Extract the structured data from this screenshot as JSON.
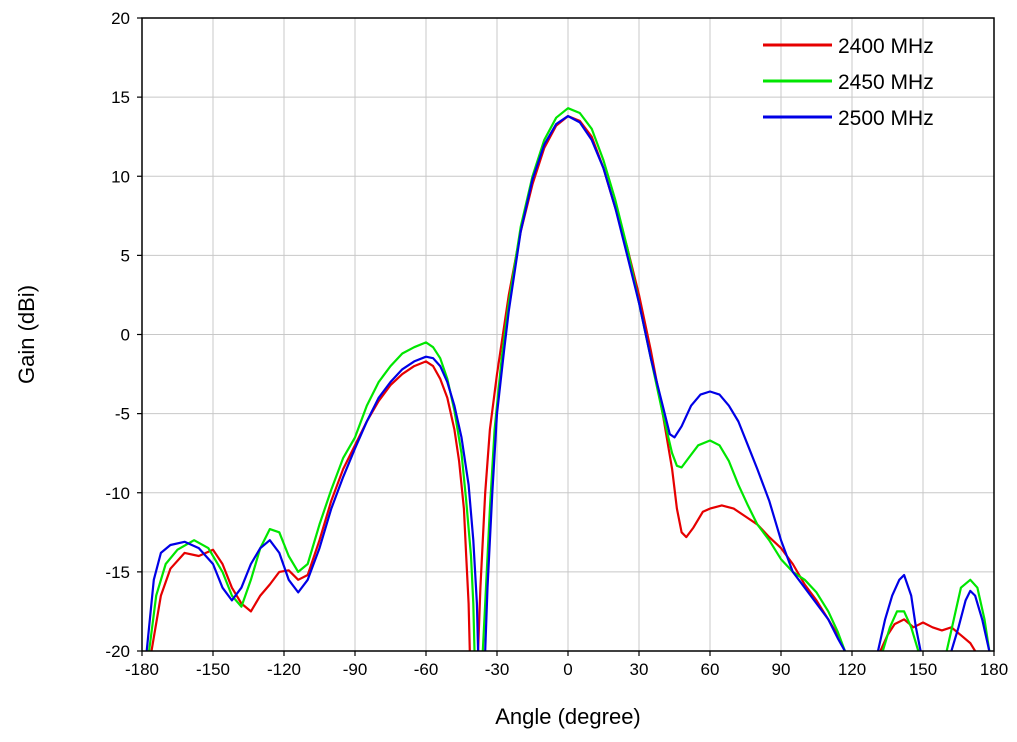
{
  "chart_data": {
    "type": "line",
    "title": "",
    "xlabel": "Angle (degree)",
    "ylabel": "Gain (dBi)",
    "xlim": [
      -180,
      180
    ],
    "ylim": [
      -20,
      20
    ],
    "xticks": [
      -180,
      -150,
      -120,
      -90,
      -60,
      -30,
      0,
      30,
      60,
      90,
      120,
      150,
      180
    ],
    "xtick_labels": [
      "-180",
      "-150",
      "-120",
      "-90",
      "-60",
      "-30",
      "0",
      "30",
      "60",
      "90",
      "120",
      "150",
      "180"
    ],
    "yticks": [
      -20,
      -15,
      -10,
      -5,
      0,
      5,
      10,
      15,
      20
    ],
    "ytick_labels": [
      "-20",
      "-15",
      "-10",
      "-5",
      "0",
      "5",
      "10",
      "15",
      "20"
    ],
    "grid": true,
    "legend_position": "top-right",
    "series": [
      {
        "name": "2400 MHz",
        "color": "#e60000",
        "segments": [
          [
            [
              -176,
              -20
            ],
            [
              -172,
              -16.5
            ],
            [
              -168,
              -14.8
            ],
            [
              -162,
              -13.8
            ],
            [
              -156,
              -14
            ],
            [
              -150,
              -13.6
            ],
            [
              -146,
              -14.5
            ],
            [
              -142,
              -16
            ],
            [
              -138,
              -17
            ],
            [
              -134,
              -17.5
            ],
            [
              -130,
              -16.5
            ],
            [
              -126,
              -15.8
            ],
            [
              -122,
              -15
            ],
            [
              -118,
              -14.9
            ],
            [
              -114,
              -15.5
            ],
            [
              -110,
              -15.2
            ],
            [
              -105,
              -13
            ],
            [
              -100,
              -10.5
            ],
            [
              -95,
              -8.5
            ],
            [
              -90,
              -7
            ],
            [
              -85,
              -5.5
            ],
            [
              -80,
              -4.2
            ],
            [
              -75,
              -3.2
            ],
            [
              -70,
              -2.5
            ],
            [
              -65,
              -2
            ],
            [
              -60,
              -1.7
            ],
            [
              -57,
              -2
            ],
            [
              -54,
              -2.8
            ],
            [
              -51,
              -4
            ],
            [
              -48,
              -6
            ],
            [
              -46,
              -8
            ],
            [
              -44,
              -11
            ],
            [
              -43,
              -14
            ],
            [
              -42,
              -17
            ],
            [
              -41.5,
              -20
            ]
          ],
          [
            [
              -38,
              -20
            ],
            [
              -37,
              -16
            ],
            [
              -35,
              -10
            ],
            [
              -33,
              -6
            ],
            [
              -30,
              -2.5
            ],
            [
              -25,
              2.5
            ],
            [
              -20,
              6.5
            ],
            [
              -15,
              9.5
            ],
            [
              -10,
              11.8
            ],
            [
              -5,
              13.2
            ],
            [
              0,
              13.8
            ],
            [
              5,
              13.5
            ],
            [
              10,
              12.5
            ],
            [
              15,
              10.5
            ],
            [
              20,
              8
            ],
            [
              25,
              5.5
            ],
            [
              30,
              2.5
            ],
            [
              35,
              -1
            ],
            [
              40,
              -5
            ],
            [
              44,
              -8.5
            ],
            [
              46,
              -11
            ],
            [
              48,
              -12.5
            ],
            [
              50,
              -12.8
            ],
            [
              53,
              -12.2
            ],
            [
              57,
              -11.2
            ],
            [
              60,
              -11
            ],
            [
              65,
              -10.8
            ],
            [
              70,
              -11
            ],
            [
              75,
              -11.5
            ],
            [
              80,
              -12
            ],
            [
              85,
              -12.8
            ],
            [
              90,
              -13.5
            ],
            [
              95,
              -14.5
            ],
            [
              100,
              -15.8
            ],
            [
              105,
              -16.8
            ],
            [
              110,
              -18
            ],
            [
              114,
              -19
            ],
            [
              117,
              -20
            ]
          ],
          [
            [
              132,
              -20
            ],
            [
              135,
              -19
            ],
            [
              138,
              -18.3
            ],
            [
              142,
              -18
            ],
            [
              146,
              -18.5
            ],
            [
              150,
              -18.2
            ],
            [
              154,
              -18.5
            ],
            [
              158,
              -18.7
            ],
            [
              162,
              -18.5
            ],
            [
              166,
              -19
            ],
            [
              170,
              -19.5
            ],
            [
              172,
              -20
            ]
          ]
        ]
      },
      {
        "name": "2450 MHz",
        "color": "#00e600",
        "segments": [
          [
            [
              -177,
              -20
            ],
            [
              -174,
              -16.5
            ],
            [
              -170,
              -14.5
            ],
            [
              -165,
              -13.6
            ],
            [
              -158,
              -13
            ],
            [
              -152,
              -13.5
            ],
            [
              -146,
              -15
            ],
            [
              -142,
              -16.5
            ],
            [
              -138,
              -17.2
            ],
            [
              -134,
              -15.5
            ],
            [
              -130,
              -13.5
            ],
            [
              -126,
              -12.3
            ],
            [
              -122,
              -12.5
            ],
            [
              -118,
              -14
            ],
            [
              -114,
              -15
            ],
            [
              -110,
              -14.5
            ],
            [
              -105,
              -12
            ],
            [
              -100,
              -9.8
            ],
            [
              -95,
              -7.8
            ],
            [
              -90,
              -6.5
            ],
            [
              -85,
              -4.5
            ],
            [
              -80,
              -3
            ],
            [
              -75,
              -2
            ],
            [
              -70,
              -1.2
            ],
            [
              -65,
              -0.8
            ],
            [
              -60,
              -0.5
            ],
            [
              -57,
              -0.8
            ],
            [
              -54,
              -1.5
            ],
            [
              -51,
              -2.8
            ],
            [
              -48,
              -4.8
            ],
            [
              -45,
              -7.5
            ],
            [
              -43,
              -10.5
            ],
            [
              -41,
              -14
            ],
            [
              -40,
              -17
            ],
            [
              -39.5,
              -20
            ]
          ],
          [
            [
              -36,
              -20
            ],
            [
              -35,
              -17
            ],
            [
              -33,
              -11
            ],
            [
              -31,
              -6
            ],
            [
              -28,
              -1.5
            ],
            [
              -25,
              2
            ],
            [
              -20,
              6.8
            ],
            [
              -15,
              10
            ],
            [
              -10,
              12.3
            ],
            [
              -5,
              13.7
            ],
            [
              0,
              14.3
            ],
            [
              5,
              14
            ],
            [
              10,
              13
            ],
            [
              15,
              11
            ],
            [
              20,
              8.5
            ],
            [
              25,
              5.5
            ],
            [
              30,
              2
            ],
            [
              35,
              -1.5
            ],
            [
              40,
              -5
            ],
            [
              44,
              -7.5
            ],
            [
              46,
              -8.3
            ],
            [
              48,
              -8.4
            ],
            [
              51,
              -7.8
            ],
            [
              55,
              -7
            ],
            [
              60,
              -6.7
            ],
            [
              64,
              -7
            ],
            [
              68,
              -8
            ],
            [
              72,
              -9.5
            ],
            [
              76,
              -10.8
            ],
            [
              80,
              -12
            ],
            [
              85,
              -13
            ],
            [
              90,
              -14.2
            ],
            [
              95,
              -15
            ],
            [
              100,
              -15.5
            ],
            [
              105,
              -16.3
            ],
            [
              110,
              -17.5
            ],
            [
              114,
              -18.8
            ],
            [
              117,
              -20
            ]
          ],
          [
            [
              133,
              -20
            ],
            [
              136,
              -18.5
            ],
            [
              139,
              -17.5
            ],
            [
              142,
              -17.5
            ],
            [
              145,
              -18.5
            ],
            [
              148,
              -20
            ]
          ],
          [
            [
              160,
              -20
            ],
            [
              163,
              -18
            ],
            [
              166,
              -16
            ],
            [
              170,
              -15.5
            ],
            [
              173,
              -16
            ],
            [
              176,
              -18
            ],
            [
              178,
              -20
            ]
          ]
        ]
      },
      {
        "name": "2500 MHz",
        "color": "#0000e6",
        "segments": [
          [
            [
              -178,
              -20
            ],
            [
              -175,
              -15.5
            ],
            [
              -172,
              -13.8
            ],
            [
              -168,
              -13.3
            ],
            [
              -162,
              -13.1
            ],
            [
              -156,
              -13.5
            ],
            [
              -150,
              -14.5
            ],
            [
              -146,
              -16
            ],
            [
              -142,
              -16.8
            ],
            [
              -138,
              -16
            ],
            [
              -134,
              -14.5
            ],
            [
              -130,
              -13.5
            ],
            [
              -126,
              -13
            ],
            [
              -122,
              -13.8
            ],
            [
              -118,
              -15.5
            ],
            [
              -114,
              -16.3
            ],
            [
              -110,
              -15.5
            ],
            [
              -105,
              -13.5
            ],
            [
              -100,
              -11
            ],
            [
              -95,
              -9
            ],
            [
              -90,
              -7.2
            ],
            [
              -85,
              -5.5
            ],
            [
              -80,
              -4
            ],
            [
              -75,
              -3
            ],
            [
              -70,
              -2.2
            ],
            [
              -65,
              -1.7
            ],
            [
              -60,
              -1.4
            ],
            [
              -57,
              -1.5
            ],
            [
              -54,
              -2
            ],
            [
              -51,
              -3
            ],
            [
              -48,
              -4.5
            ],
            [
              -45,
              -6.5
            ],
            [
              -42,
              -9.5
            ],
            [
              -40,
              -13
            ],
            [
              -38.5,
              -17
            ],
            [
              -38,
              -20
            ]
          ],
          [
            [
              -35,
              -20
            ],
            [
              -34,
              -16
            ],
            [
              -32,
              -10
            ],
            [
              -30,
              -5
            ],
            [
              -27,
              -1
            ],
            [
              -25,
              1.5
            ],
            [
              -20,
              6.5
            ],
            [
              -15,
              9.8
            ],
            [
              -10,
              12
            ],
            [
              -5,
              13.3
            ],
            [
              0,
              13.8
            ],
            [
              5,
              13.4
            ],
            [
              10,
              12.3
            ],
            [
              15,
              10.5
            ],
            [
              20,
              8
            ],
            [
              25,
              5
            ],
            [
              30,
              2
            ],
            [
              35,
              -1.5
            ],
            [
              40,
              -4.5
            ],
            [
              43,
              -6.3
            ],
            [
              45,
              -6.5
            ],
            [
              48,
              -5.8
            ],
            [
              52,
              -4.5
            ],
            [
              56,
              -3.8
            ],
            [
              60,
              -3.6
            ],
            [
              64,
              -3.8
            ],
            [
              68,
              -4.5
            ],
            [
              72,
              -5.5
            ],
            [
              76,
              -7
            ],
            [
              80,
              -8.5
            ],
            [
              85,
              -10.5
            ],
            [
              90,
              -13
            ],
            [
              95,
              -15
            ],
            [
              100,
              -16
            ],
            [
              105,
              -17
            ],
            [
              110,
              -18
            ],
            [
              114,
              -19.2
            ],
            [
              117,
              -20
            ]
          ],
          [
            [
              131,
              -20
            ],
            [
              134,
              -18
            ],
            [
              137,
              -16.5
            ],
            [
              140,
              -15.5
            ],
            [
              142,
              -15.2
            ],
            [
              145,
              -16.5
            ],
            [
              147,
              -18.5
            ],
            [
              149,
              -20
            ]
          ],
          [
            [
              162,
              -20
            ],
            [
              165,
              -18.5
            ],
            [
              168,
              -16.8
            ],
            [
              170,
              -16.2
            ],
            [
              172,
              -16.5
            ],
            [
              175,
              -18
            ],
            [
              178,
              -20
            ]
          ]
        ]
      }
    ]
  }
}
